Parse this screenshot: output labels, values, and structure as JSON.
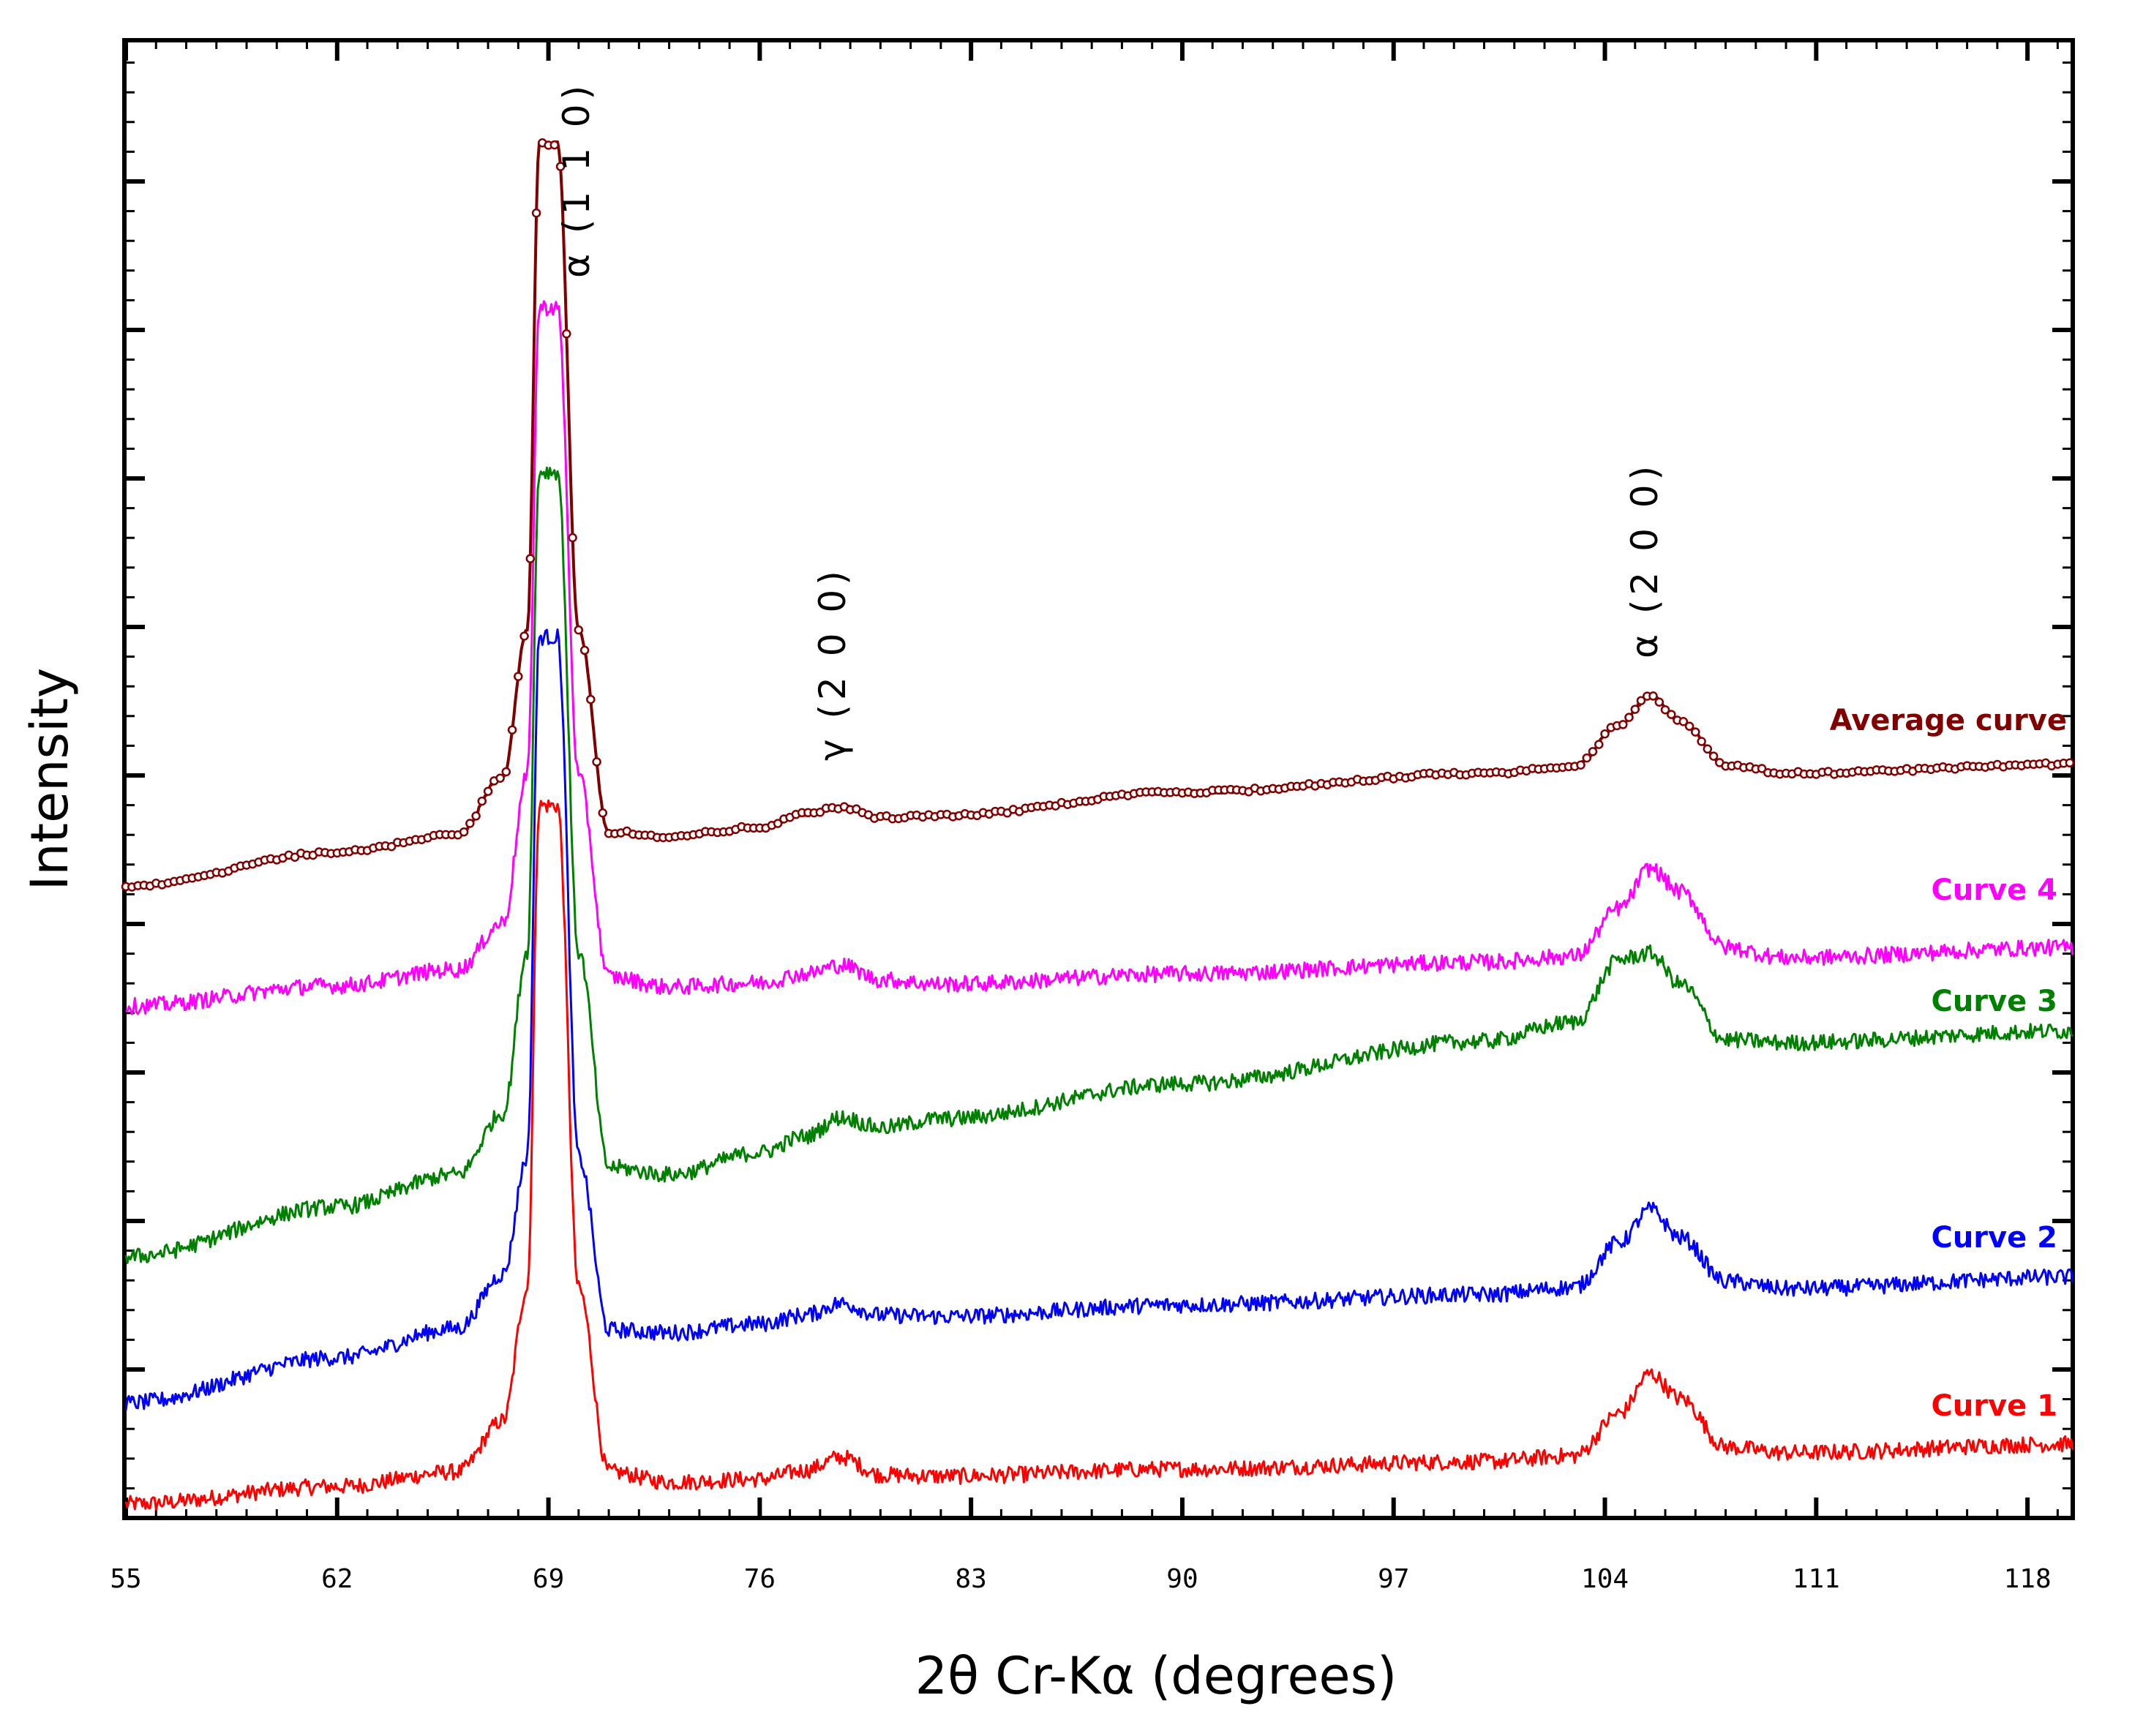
{
  "chart_data": {
    "type": "line",
    "title": "",
    "xlabel": "2θ Cr-Kα (degrees)",
    "ylabel": "Intensity",
    "xlim": [
      55,
      119.5
    ],
    "ylim": [
      0,
      100
    ],
    "x_ticks": [
      55,
      62,
      69,
      76,
      83,
      90,
      97,
      104,
      111,
      118
    ],
    "y_ticks_shown": false,
    "grid": false,
    "peaks": [
      {
        "label": "α (1 1 0)",
        "x": 69.0
      },
      {
        "label": "γ (2 0 0)",
        "x": 78.7
      },
      {
        "label": "α (2 0 0)",
        "x": 105.5
      }
    ],
    "series": [
      {
        "name": "Curve 1",
        "color": "#ff0000",
        "markers": false,
        "x": [
          55,
          62,
          66,
          67.5,
          68.3,
          68.7,
          69.3,
          70,
          71,
          73,
          76,
          77.5,
          78.7,
          80,
          82,
          90,
          100,
          103,
          104.5,
          105.5,
          106.5,
          108,
          110,
          119.5
        ],
        "y": [
          0.3,
          1.5,
          2.5,
          6,
          15,
          48,
          48,
          15,
          2.5,
          1.8,
          2.0,
          2.6,
          3.5,
          2.3,
          2.2,
          2.7,
          3.2,
          3.6,
          6.5,
          9.2,
          7.5,
          4.2,
          3.8,
          4.4
        ]
      },
      {
        "name": "Curve 2",
        "color": "#0000ff",
        "markers": false,
        "x": [
          55,
          62,
          66,
          67.5,
          68.3,
          68.7,
          69.3,
          70,
          71,
          73,
          76,
          77.5,
          78.7,
          80,
          82,
          90,
          100,
          103,
          104.5,
          105.5,
          106.5,
          108,
          110,
          119.5
        ],
        "y": [
          7.2,
          10.3,
          12.3,
          16,
          24,
          59.5,
          59.5,
          24,
          12.2,
          12.0,
          12.6,
          13.2,
          14.0,
          13.2,
          13.1,
          13.9,
          14.6,
          15.1,
          18.2,
          20.4,
          18.5,
          15.5,
          15.0,
          15.8
        ]
      },
      {
        "name": "Curve 3",
        "color": "#008000",
        "markers": false,
        "x": [
          55,
          62,
          66,
          67.5,
          68.3,
          68.7,
          69.3,
          70,
          71,
          73,
          76,
          77.5,
          78.7,
          80,
          82,
          90,
          100,
          103,
          104.5,
          105.5,
          106.5,
          108,
          110,
          119.5
        ],
        "y": [
          17.2,
          20.6,
          22.8,
          27,
          38,
          70.8,
          70.8,
          38,
          23.3,
          22.8,
          24.3,
          25.4,
          26.7,
          26.0,
          26.6,
          29.0,
          31.9,
          33.2,
          37.5,
          37.9,
          35.8,
          32.0,
          31.8,
          32.6
        ]
      },
      {
        "name": "Curve 4",
        "color": "#ff00ff",
        "markers": false,
        "x": [
          55,
          62,
          66,
          67.5,
          68.3,
          68.7,
          69.3,
          70,
          71,
          73,
          76,
          77.5,
          78.7,
          80,
          82,
          90,
          100,
          103,
          104.5,
          105.5,
          106.5,
          108,
          110,
          119.5
        ],
        "y": [
          34.3,
          35.7,
          36.8,
          40,
          50,
          82,
          82,
          50,
          36.3,
          35.6,
          35.9,
          36.5,
          37.1,
          36.1,
          35.8,
          36.5,
          37.3,
          37.7,
          41,
          43.7,
          42.1,
          38.3,
          37.6,
          38.3
        ]
      },
      {
        "name": "Average curve",
        "color": "#800000",
        "markers": true,
        "x": [
          55,
          62,
          66,
          67.5,
          68.3,
          68.7,
          69.3,
          70,
          71,
          73,
          76,
          77.5,
          78.7,
          80,
          82,
          90,
          100,
          103,
          104.5,
          105.5,
          106.5,
          108,
          110,
          119.5
        ],
        "y": [
          42.5,
          44.8,
          46.0,
          50,
          60,
          93.2,
          93.2,
          60,
          46.2,
          45.9,
          46.5,
          47.4,
          47.9,
          47.2,
          47.3,
          48.9,
          50.2,
          50.7,
          53.5,
          55.5,
          53.8,
          50.8,
          50.2,
          50.8
        ]
      }
    ]
  },
  "legend_labels": {
    "average": "Average curve",
    "curve4": "Curve 4",
    "curve3": "Curve 3",
    "curve2": "Curve 2",
    "curve1": "Curve 1"
  }
}
